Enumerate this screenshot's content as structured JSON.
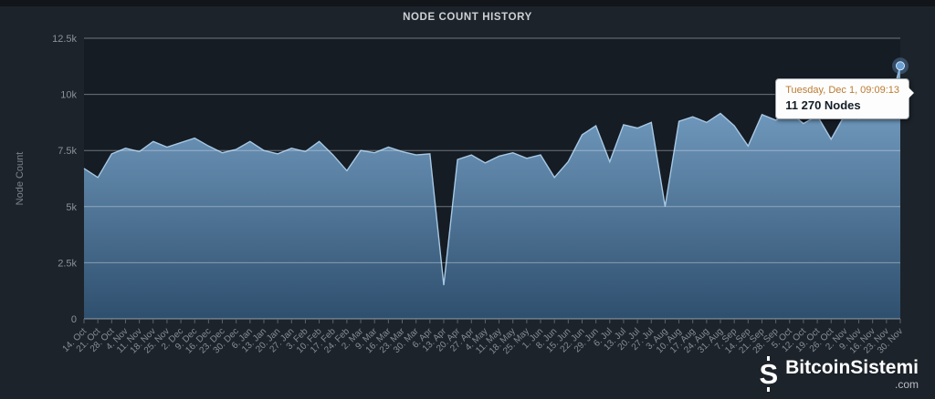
{
  "header": {
    "title": "NODE COUNT HISTORY"
  },
  "chart_data": {
    "type": "area",
    "title": "NODE COUNT HISTORY",
    "series_name": "Nodes",
    "xlabel": "",
    "ylabel": "Node Count",
    "ylim": [
      0,
      12500
    ],
    "grid": true,
    "legend": "none",
    "y_ticks": [
      {
        "value": 0,
        "label": "0"
      },
      {
        "value": 2500,
        "label": "2.5k"
      },
      {
        "value": 5000,
        "label": "5k"
      },
      {
        "value": 7500,
        "label": "7.5k"
      },
      {
        "value": 10000,
        "label": "10k"
      },
      {
        "value": 12500,
        "label": "12.5k"
      }
    ],
    "x_labels": [
      "14. Oct",
      "21. Oct",
      "28. Oct",
      "4. Nov",
      "11. Nov",
      "18. Nov",
      "25. Nov",
      "2. Dec",
      "9. Dec",
      "16. Dec",
      "23. Dec",
      "30. Dec",
      "6. Jan",
      "13. Jan",
      "20. Jan",
      "27. Jan",
      "3. Feb",
      "10. Feb",
      "17. Feb",
      "24. Feb",
      "2. Mar",
      "9. Mar",
      "16. Mar",
      "23. Mar",
      "30. Mar",
      "6. Apr",
      "13. Apr",
      "20. Apr",
      "27. Apr",
      "4. May",
      "11. May",
      "18. May",
      "25. May",
      "1. Jun",
      "8. Jun",
      "15. Jun",
      "22. Jun",
      "29. Jun",
      "6. Jul",
      "13. Jul",
      "20. Jul",
      "27. Jul",
      "3. Aug",
      "10. Aug",
      "17. Aug",
      "24. Aug",
      "31. Aug",
      "7. Sep",
      "14. Sep",
      "21. Sep",
      "28. Sep",
      "5. Oct",
      "12. Oct",
      "19. Oct",
      "26. Oct",
      "2. Nov",
      "9. Nov",
      "16. Nov",
      "23. Nov",
      "30. Nov"
    ],
    "values": [
      6700,
      6300,
      7350,
      7600,
      7450,
      7900,
      7650,
      7850,
      8050,
      7700,
      7400,
      7550,
      7900,
      7500,
      7350,
      7600,
      7450,
      7900,
      7300,
      6600,
      7500,
      7400,
      7650,
      7450,
      7300,
      7350,
      1500,
      7100,
      7300,
      6950,
      7250,
      7400,
      7150,
      7300,
      6300,
      7000,
      8200,
      8600,
      7000,
      8650,
      8500,
      8750,
      5000,
      8800,
      9000,
      8750,
      9150,
      8600,
      7700,
      9100,
      8850,
      9200,
      8700,
      9050,
      8000,
      9100,
      8900,
      9250,
      9000,
      11270
    ],
    "colors": {
      "area_top": "#7da8cd",
      "area_bottom": "#2f4f6e",
      "line": "#a6c8e4",
      "marker": "#68a0d6",
      "background": "#1d232b",
      "plot_background": "#161c24"
    }
  },
  "tooltip": {
    "date": "Tuesday, Dec 1, 09:09:13",
    "value": "11 270 Nodes"
  },
  "watermark": {
    "logo_letter": "S",
    "name": "BitcoinSistemi",
    "tld": ".com"
  }
}
